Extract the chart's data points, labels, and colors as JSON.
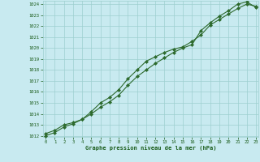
{
  "line1": [
    1012.2,
    1012.5,
    1013.0,
    1013.2,
    1013.5,
    1014.2,
    1015.0,
    1015.5,
    1016.2,
    1017.2,
    1018.0,
    1018.8,
    1019.2,
    1019.6,
    1019.9,
    1020.1,
    1020.6,
    1021.2,
    1022.1,
    1022.6,
    1023.1,
    1023.6,
    1024.0,
    1023.8
  ],
  "line2": [
    1012.0,
    1012.3,
    1012.8,
    1013.1,
    1013.5,
    1014.0,
    1014.6,
    1015.1,
    1015.7,
    1016.6,
    1017.4,
    1018.0,
    1018.6,
    1019.1,
    1019.6,
    1020.0,
    1020.3,
    1021.6,
    1022.3,
    1022.9,
    1023.4,
    1024.0,
    1024.2,
    1023.7
  ],
  "x": [
    0,
    1,
    2,
    3,
    4,
    5,
    6,
    7,
    8,
    9,
    10,
    11,
    12,
    13,
    14,
    15,
    16,
    17,
    18,
    19,
    20,
    21,
    22,
    23
  ],
  "ylim": [
    1012,
    1024
  ],
  "xlim": [
    -0.3,
    23.3
  ],
  "yticks": [
    1012,
    1013,
    1014,
    1015,
    1016,
    1017,
    1018,
    1019,
    1020,
    1021,
    1022,
    1023,
    1024
  ],
  "xticks": [
    0,
    1,
    2,
    3,
    4,
    5,
    6,
    7,
    8,
    9,
    10,
    11,
    12,
    13,
    14,
    15,
    16,
    17,
    18,
    19,
    20,
    21,
    22,
    23
  ],
  "line_color": "#2d6a2d",
  "marker_color": "#2d6a2d",
  "bg_color": "#c8eaf0",
  "grid_color": "#9ecfcf",
  "xlabel": "Graphe pression niveau de la mer (hPa)",
  "xlabel_color": "#1a5c1a",
  "tick_color": "#1a5c1a",
  "marker": "D",
  "markersize": 2.0,
  "linewidth": 0.8
}
